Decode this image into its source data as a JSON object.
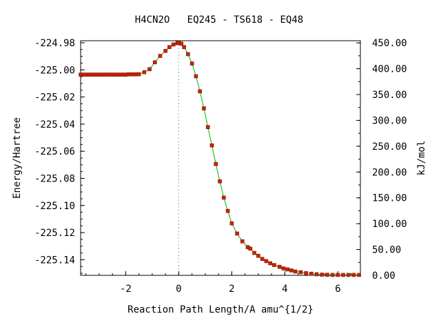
{
  "chart_data": {
    "type": "line",
    "title": "H4CN2O   EQ245 - TS618 - EQ48",
    "xlabel": "Reaction Path Length/A amu^{1/2}",
    "ylabel": "Energy/Hartree",
    "y2label": "kJ/mol",
    "xlim": [
      -3.7,
      6.85
    ],
    "ylim": [
      -225.1515,
      -224.9785
    ],
    "y2lim": [
      0.0,
      454.2
    ],
    "grid": false,
    "x_ticks": [
      -2,
      0,
      2,
      4,
      6
    ],
    "x_tick_labels": [
      "-2",
      "0",
      "2",
      "4",
      "6"
    ],
    "y_ticks": [
      -224.98,
      -225.0,
      -225.02,
      -225.04,
      -225.06,
      -225.08,
      -225.1,
      -225.12,
      -225.14
    ],
    "y_tick_labels": [
      "-224.98",
      "-225.00",
      "-225.02",
      "-225.04",
      "-225.06",
      "-225.08",
      "-225.10",
      "-225.12",
      "-225.14"
    ],
    "y2_ticks": [
      450,
      400,
      350,
      300,
      250,
      200,
      150,
      100,
      50,
      0
    ],
    "y2_tick_labels": [
      "450.00",
      "400.00",
      "350.00",
      "300.00",
      "250.00",
      "200.00",
      "150.00",
      "100.00",
      "50.00",
      "0.00"
    ],
    "series": [
      {
        "color": "#cc2200",
        "line_color": "#00b000",
        "x": [
          -3.7,
          -3.6,
          -3.5,
          -3.4,
          -3.3,
          -3.2,
          -3.1,
          -3.0,
          -2.9,
          -2.8,
          -2.7,
          -2.6,
          -2.5,
          -2.4,
          -2.3,
          -2.2,
          -2.1,
          -2.0,
          -1.9,
          -1.8,
          -1.7,
          -1.6,
          -1.5,
          -1.3,
          -1.1,
          -0.9,
          -0.7,
          -0.5,
          -0.35,
          -0.2,
          -0.05,
          0.0,
          0.1,
          0.2,
          0.35,
          0.5,
          0.65,
          0.8,
          0.95,
          1.1,
          1.25,
          1.4,
          1.55,
          1.7,
          1.85,
          2.0,
          2.2,
          2.4,
          2.6,
          2.7,
          2.85,
          3.0,
          3.15,
          3.3,
          3.45,
          3.6,
          3.8,
          3.95,
          4.1,
          4.25,
          4.4,
          4.6,
          4.8,
          5.0,
          5.2,
          5.4,
          5.6,
          5.8,
          6.0,
          6.2,
          6.4,
          6.6,
          6.8
        ],
        "y": [
          -225.0035,
          -225.0035,
          -225.0035,
          -225.0035,
          -225.0035,
          -225.0035,
          -225.0035,
          -225.0035,
          -225.0035,
          -225.0035,
          -225.0035,
          -225.0035,
          -225.0035,
          -225.0035,
          -225.0035,
          -225.0035,
          -225.0035,
          -225.0035,
          -225.0033,
          -225.0033,
          -225.0033,
          -225.0033,
          -225.0032,
          -225.0017,
          -224.9995,
          -224.9944,
          -224.9897,
          -224.986,
          -224.9832,
          -224.9813,
          -224.9803,
          -224.9802,
          -224.9807,
          -224.9832,
          -224.9884,
          -224.9953,
          -225.0047,
          -225.0158,
          -225.0284,
          -225.0422,
          -225.0557,
          -225.0694,
          -225.0822,
          -225.0942,
          -225.104,
          -225.1132,
          -225.1207,
          -225.1264,
          -225.1307,
          -225.1318,
          -225.135,
          -225.1371,
          -225.1394,
          -225.141,
          -225.1426,
          -225.1439,
          -225.1452,
          -225.1464,
          -225.1471,
          -225.1479,
          -225.1487,
          -225.1492,
          -225.1499,
          -225.1503,
          -225.1507,
          -225.151,
          -225.1511,
          -225.1512,
          -225.1512,
          -225.1512,
          -225.1512,
          -225.1512,
          -225.1512
        ]
      }
    ]
  }
}
